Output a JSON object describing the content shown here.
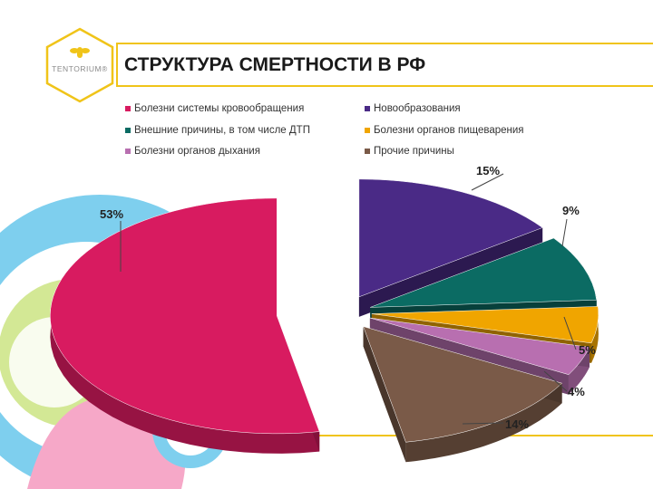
{
  "slide": {
    "title": "СТРУКТУРА СМЕРТНОСТИ В РФ",
    "logo_text": "TENTORIUM®",
    "accent": "#f0c419"
  },
  "chart_data": {
    "type": "pie",
    "title": "",
    "legend_position": "top",
    "series": [
      {
        "name": "Болезни системы кровообращения",
        "value": 53,
        "label": "53%",
        "color": "#d81b60"
      },
      {
        "name": "Новообразования",
        "value": 15,
        "label": "15%",
        "color": "#4a2a86"
      },
      {
        "name": "Внешние причины, в том числе ДТП",
        "value": 9,
        "label": "9%",
        "color": "#0b6b63"
      },
      {
        "name": "Болезни органов пищеварения",
        "value": 5,
        "label": "5%",
        "color": "#f0a500"
      },
      {
        "name": "Болезни органов дыхания",
        "value": 4,
        "label": "4%",
        "color": "#b86fb0"
      },
      {
        "name": "Прочие причины",
        "value": 14,
        "label": "14%",
        "color": "#7a5a48"
      }
    ]
  }
}
